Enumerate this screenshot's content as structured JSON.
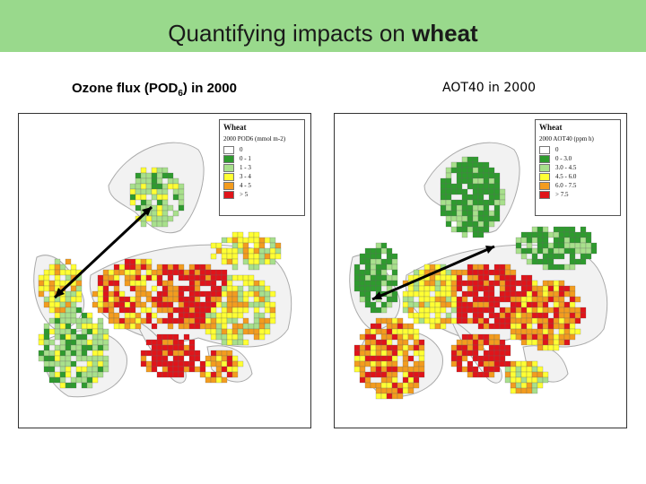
{
  "header": {
    "title_prefix": "Quantifying impacts on ",
    "title_bold": "wheat"
  },
  "left_panel": {
    "caption_main": "Ozone flux (POD",
    "caption_sub": "6",
    "caption_tail": ") in 2000",
    "legend": {
      "title": "Wheat",
      "subtitle": "2000 POD6 (mmol m-2)",
      "classes": [
        {
          "label": "0",
          "color": "#ffffff"
        },
        {
          "label": "0 - 1",
          "color": "#2e9b2e"
        },
        {
          "label": "1 - 3",
          "color": "#a8e08c"
        },
        {
          "label": "3 - 4",
          "color": "#ffff33"
        },
        {
          "label": "4 - 5",
          "color": "#f39c1e"
        },
        {
          "label": "> 5",
          "color": "#e0141a"
        }
      ]
    }
  },
  "right_panel": {
    "caption": "AOT40 in 2000",
    "legend": {
      "title": "Wheat",
      "subtitle": "2000 AOT40 (ppm h)",
      "classes": [
        {
          "label": "0",
          "color": "#ffffff"
        },
        {
          "label": "0 - 3.0",
          "color": "#2e9b2e"
        },
        {
          "label": "3.0 - 4.5",
          "color": "#a8e08c"
        },
        {
          "label": "4.5 - 6.0",
          "color": "#ffff33"
        },
        {
          "label": "6.0 - 7.5",
          "color": "#f39c1e"
        },
        {
          "label": "> 7.5",
          "color": "#e0141a"
        }
      ]
    }
  },
  "colors": {
    "title_bg": "#99d98c",
    "land": "#f2f2f2",
    "sea": "#ffffff",
    "coast": "#aaaaaa"
  }
}
